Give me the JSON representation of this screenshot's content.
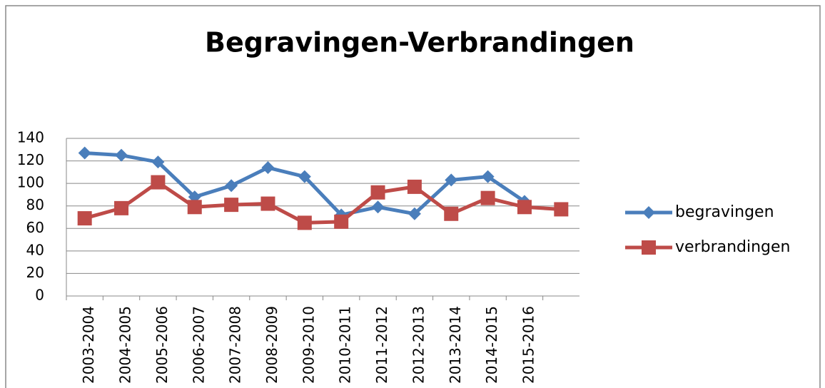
{
  "chart_data": {
    "type": "line",
    "title": "Begravingen-Verbrandingen",
    "categories": [
      "2003-2004",
      "2004-2005",
      "2005-2006",
      "2006-2007",
      "2007-2008",
      "2008-2009",
      "2009-2010",
      "2010-2011",
      "2011-2012",
      "2012-2013",
      "2013-2014",
      "2014-2015",
      "2015-2016",
      null
    ],
    "series": [
      {
        "name": "begravingen",
        "color": "#4a7ebb",
        "marker": "diamond",
        "values": [
          127,
          125,
          119,
          88,
          98,
          114,
          106,
          72,
          79,
          73,
          103,
          106,
          84,
          null
        ]
      },
      {
        "name": "verbrandingen",
        "color": "#be4b48",
        "marker": "square",
        "values": [
          69,
          78,
          101,
          79,
          81,
          82,
          65,
          66,
          92,
          97,
          73,
          87,
          79,
          77
        ]
      }
    ],
    "ylim": [
      0,
      140
    ],
    "yticks": [
      0,
      20,
      40,
      60,
      80,
      100,
      120,
      140
    ],
    "grid": true,
    "legend": "right"
  }
}
